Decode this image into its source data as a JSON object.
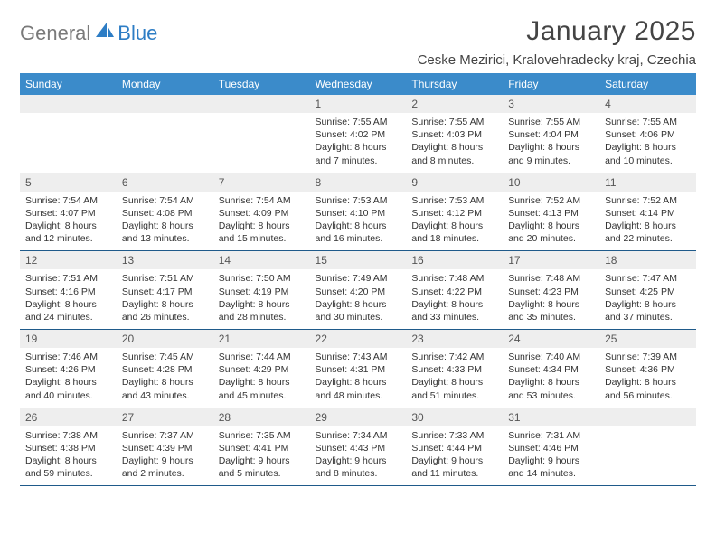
{
  "brand": {
    "part1": "General",
    "part2": "Blue"
  },
  "title": "January 2025",
  "location": "Ceske Mezirici, Kralovehradecky kraj, Czechia",
  "colors": {
    "header_bg": "#3b8bca",
    "header_text": "#ffffff",
    "daynum_bg": "#eeeeee",
    "rule": "#1f5a8a",
    "body_text": "#333333",
    "logo_gray": "#7a7a7a",
    "logo_blue": "#2d7dc5"
  },
  "weekdays": [
    "Sunday",
    "Monday",
    "Tuesday",
    "Wednesday",
    "Thursday",
    "Friday",
    "Saturday"
  ],
  "weeks": [
    [
      {
        "n": "",
        "sr": "",
        "ss": "",
        "dl": ""
      },
      {
        "n": "",
        "sr": "",
        "ss": "",
        "dl": ""
      },
      {
        "n": "",
        "sr": "",
        "ss": "",
        "dl": ""
      },
      {
        "n": "1",
        "sr": "Sunrise: 7:55 AM",
        "ss": "Sunset: 4:02 PM",
        "dl": "Daylight: 8 hours and 7 minutes."
      },
      {
        "n": "2",
        "sr": "Sunrise: 7:55 AM",
        "ss": "Sunset: 4:03 PM",
        "dl": "Daylight: 8 hours and 8 minutes."
      },
      {
        "n": "3",
        "sr": "Sunrise: 7:55 AM",
        "ss": "Sunset: 4:04 PM",
        "dl": "Daylight: 8 hours and 9 minutes."
      },
      {
        "n": "4",
        "sr": "Sunrise: 7:55 AM",
        "ss": "Sunset: 4:06 PM",
        "dl": "Daylight: 8 hours and 10 minutes."
      }
    ],
    [
      {
        "n": "5",
        "sr": "Sunrise: 7:54 AM",
        "ss": "Sunset: 4:07 PM",
        "dl": "Daylight: 8 hours and 12 minutes."
      },
      {
        "n": "6",
        "sr": "Sunrise: 7:54 AM",
        "ss": "Sunset: 4:08 PM",
        "dl": "Daylight: 8 hours and 13 minutes."
      },
      {
        "n": "7",
        "sr": "Sunrise: 7:54 AM",
        "ss": "Sunset: 4:09 PM",
        "dl": "Daylight: 8 hours and 15 minutes."
      },
      {
        "n": "8",
        "sr": "Sunrise: 7:53 AM",
        "ss": "Sunset: 4:10 PM",
        "dl": "Daylight: 8 hours and 16 minutes."
      },
      {
        "n": "9",
        "sr": "Sunrise: 7:53 AM",
        "ss": "Sunset: 4:12 PM",
        "dl": "Daylight: 8 hours and 18 minutes."
      },
      {
        "n": "10",
        "sr": "Sunrise: 7:52 AM",
        "ss": "Sunset: 4:13 PM",
        "dl": "Daylight: 8 hours and 20 minutes."
      },
      {
        "n": "11",
        "sr": "Sunrise: 7:52 AM",
        "ss": "Sunset: 4:14 PM",
        "dl": "Daylight: 8 hours and 22 minutes."
      }
    ],
    [
      {
        "n": "12",
        "sr": "Sunrise: 7:51 AM",
        "ss": "Sunset: 4:16 PM",
        "dl": "Daylight: 8 hours and 24 minutes."
      },
      {
        "n": "13",
        "sr": "Sunrise: 7:51 AM",
        "ss": "Sunset: 4:17 PM",
        "dl": "Daylight: 8 hours and 26 minutes."
      },
      {
        "n": "14",
        "sr": "Sunrise: 7:50 AM",
        "ss": "Sunset: 4:19 PM",
        "dl": "Daylight: 8 hours and 28 minutes."
      },
      {
        "n": "15",
        "sr": "Sunrise: 7:49 AM",
        "ss": "Sunset: 4:20 PM",
        "dl": "Daylight: 8 hours and 30 minutes."
      },
      {
        "n": "16",
        "sr": "Sunrise: 7:48 AM",
        "ss": "Sunset: 4:22 PM",
        "dl": "Daylight: 8 hours and 33 minutes."
      },
      {
        "n": "17",
        "sr": "Sunrise: 7:48 AM",
        "ss": "Sunset: 4:23 PM",
        "dl": "Daylight: 8 hours and 35 minutes."
      },
      {
        "n": "18",
        "sr": "Sunrise: 7:47 AM",
        "ss": "Sunset: 4:25 PM",
        "dl": "Daylight: 8 hours and 37 minutes."
      }
    ],
    [
      {
        "n": "19",
        "sr": "Sunrise: 7:46 AM",
        "ss": "Sunset: 4:26 PM",
        "dl": "Daylight: 8 hours and 40 minutes."
      },
      {
        "n": "20",
        "sr": "Sunrise: 7:45 AM",
        "ss": "Sunset: 4:28 PM",
        "dl": "Daylight: 8 hours and 43 minutes."
      },
      {
        "n": "21",
        "sr": "Sunrise: 7:44 AM",
        "ss": "Sunset: 4:29 PM",
        "dl": "Daylight: 8 hours and 45 minutes."
      },
      {
        "n": "22",
        "sr": "Sunrise: 7:43 AM",
        "ss": "Sunset: 4:31 PM",
        "dl": "Daylight: 8 hours and 48 minutes."
      },
      {
        "n": "23",
        "sr": "Sunrise: 7:42 AM",
        "ss": "Sunset: 4:33 PM",
        "dl": "Daylight: 8 hours and 51 minutes."
      },
      {
        "n": "24",
        "sr": "Sunrise: 7:40 AM",
        "ss": "Sunset: 4:34 PM",
        "dl": "Daylight: 8 hours and 53 minutes."
      },
      {
        "n": "25",
        "sr": "Sunrise: 7:39 AM",
        "ss": "Sunset: 4:36 PM",
        "dl": "Daylight: 8 hours and 56 minutes."
      }
    ],
    [
      {
        "n": "26",
        "sr": "Sunrise: 7:38 AM",
        "ss": "Sunset: 4:38 PM",
        "dl": "Daylight: 8 hours and 59 minutes."
      },
      {
        "n": "27",
        "sr": "Sunrise: 7:37 AM",
        "ss": "Sunset: 4:39 PM",
        "dl": "Daylight: 9 hours and 2 minutes."
      },
      {
        "n": "28",
        "sr": "Sunrise: 7:35 AM",
        "ss": "Sunset: 4:41 PM",
        "dl": "Daylight: 9 hours and 5 minutes."
      },
      {
        "n": "29",
        "sr": "Sunrise: 7:34 AM",
        "ss": "Sunset: 4:43 PM",
        "dl": "Daylight: 9 hours and 8 minutes."
      },
      {
        "n": "30",
        "sr": "Sunrise: 7:33 AM",
        "ss": "Sunset: 4:44 PM",
        "dl": "Daylight: 9 hours and 11 minutes."
      },
      {
        "n": "31",
        "sr": "Sunrise: 7:31 AM",
        "ss": "Sunset: 4:46 PM",
        "dl": "Daylight: 9 hours and 14 minutes."
      },
      {
        "n": "",
        "sr": "",
        "ss": "",
        "dl": ""
      }
    ]
  ]
}
